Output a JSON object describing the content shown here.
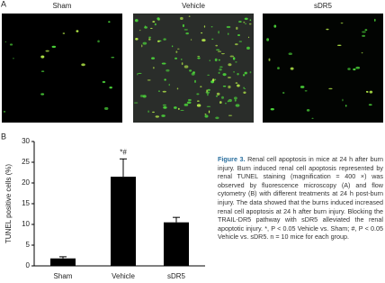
{
  "panel_a": {
    "label": "A",
    "images": [
      "Sham",
      "Vehicle",
      "sDR5"
    ]
  },
  "chart_data": {
    "type": "bar",
    "panel_label": "B",
    "ylabel": "TUNEL positive cells (%)",
    "categories": [
      "Sham",
      "Vehicle",
      "sDR5"
    ],
    "values": [
      1.8,
      21.5,
      10.5
    ],
    "errors": [
      0.4,
      4.3,
      1.2
    ],
    "annotation": "*#",
    "color": "#000000",
    "ylim": [
      0,
      30
    ],
    "yticks": [
      0,
      5,
      10,
      15,
      20,
      25,
      30
    ]
  },
  "caption": {
    "label": "Figure 3.",
    "text": "Renal cell apoptosis in mice at 24 h after burn injury. Burn induced renal cell apoptosis represented by renal TUNEL staining (magnification = 400 ×) was observed by fluorescence microscopy (A) and flow cytometry (B) with different treatments at 24 h post-burn injury. The data showed that the burns induced increased renal cell apoptosis at 24 h after burn injury. Blocking the TRAIL-DR5 pathway with sDR5 alleviated the renal apoptotic injury. *, P < 0.05 Vehicle vs. Sham; #, P < 0.05 Vehicle vs. sDR5. n = 10 mice for each group."
  }
}
